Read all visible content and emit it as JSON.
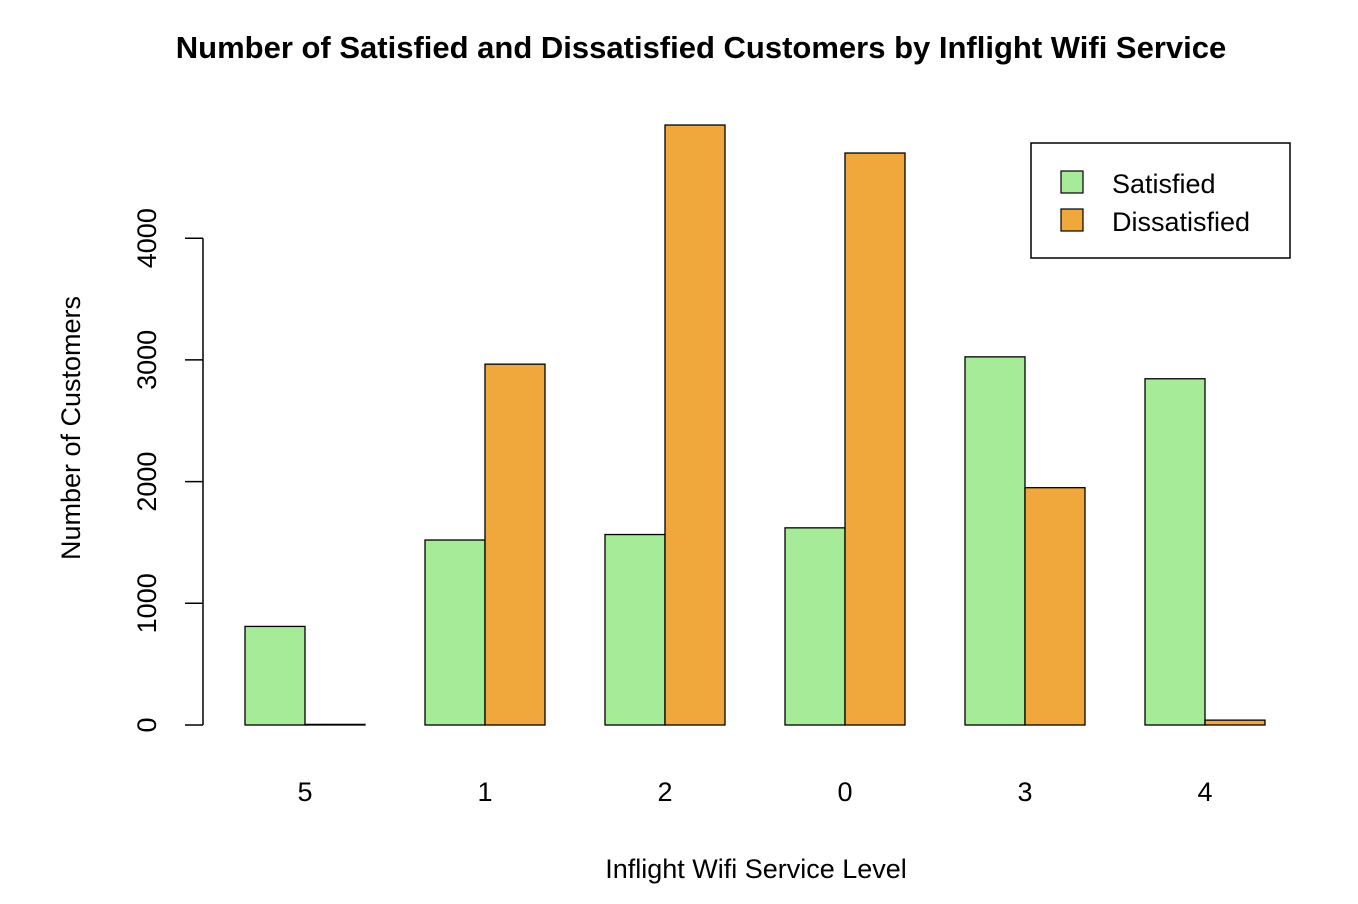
{
  "chart_data": {
    "type": "bar",
    "title": "Number of Satisfied and Dissatisfied Customers by Inflight Wifi Service",
    "xlabel": "Inflight Wifi Service Level",
    "ylabel": "Number of Customers",
    "categories": [
      "5",
      "1",
      "2",
      "0",
      "3",
      "4"
    ],
    "series": [
      {
        "name": "Satisfied",
        "color": "#A6EC98",
        "values": [
          810,
          1520,
          1565,
          1620,
          3025,
          2845
        ]
      },
      {
        "name": "Dissatisfied",
        "color": "#F0A83C",
        "values": [
          5,
          2965,
          4930,
          4700,
          1950,
          40
        ]
      }
    ],
    "ylim": [
      0,
      5000
    ],
    "yticks": [
      0,
      1000,
      2000,
      3000,
      4000
    ],
    "grid": false,
    "legend_position": "top-right"
  }
}
